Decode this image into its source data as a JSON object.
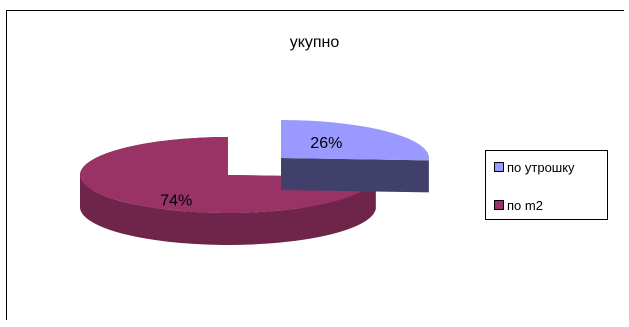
{
  "chart_data": {
    "type": "pie",
    "title": "укупно",
    "categories": [
      "по утрошку",
      "по m2"
    ],
    "values": [
      26,
      74
    ],
    "data_labels": [
      "26%",
      "74%"
    ],
    "legend_position": "right",
    "style": "3d-exploded",
    "colors": [
      "#9999ff",
      "#993366"
    ]
  }
}
